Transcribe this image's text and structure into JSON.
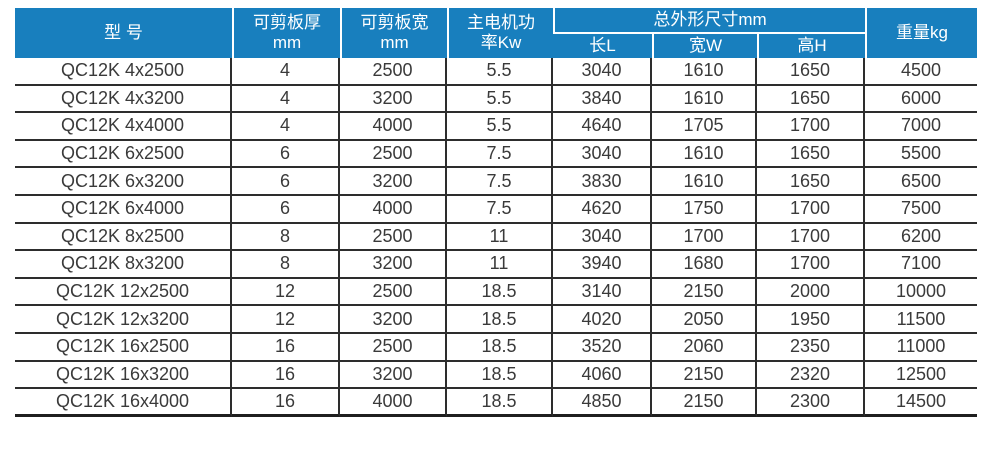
{
  "colors": {
    "header_bg": "#187fbe",
    "header_text": "#ffffff",
    "grid_line": "#2d2d2d",
    "body_text": "#3a3a3a"
  },
  "table": {
    "headers": {
      "model": "型 号",
      "thickness_line1": "可剪板厚",
      "thickness_line2": "mm",
      "width_line1": "可剪板宽",
      "width_line2": "mm",
      "power_line1": "主电机功",
      "power_line2": "率Kw",
      "dimensions_group": "总外形尺寸mm",
      "dim_length": "长L",
      "dim_width": "宽W",
      "dim_height": "高H",
      "weight": "重量kg"
    },
    "rows": [
      [
        "QC12K 4x2500",
        "4",
        "2500",
        "5.5",
        "3040",
        "1610",
        "1650",
        "4500"
      ],
      [
        "QC12K 4x3200",
        "4",
        "3200",
        "5.5",
        "3840",
        "1610",
        "1650",
        "6000"
      ],
      [
        "QC12K 4x4000",
        "4",
        "4000",
        "5.5",
        "4640",
        "1705",
        "1700",
        "7000"
      ],
      [
        "QC12K 6x2500",
        "6",
        "2500",
        "7.5",
        "3040",
        "1610",
        "1650",
        "5500"
      ],
      [
        "QC12K 6x3200",
        "6",
        "3200",
        "7.5",
        "3830",
        "1610",
        "1650",
        "6500"
      ],
      [
        "QC12K 6x4000",
        "6",
        "4000",
        "7.5",
        "4620",
        "1750",
        "1700",
        "7500"
      ],
      [
        "QC12K 8x2500",
        "8",
        "2500",
        "11",
        "3040",
        "1700",
        "1700",
        "6200"
      ],
      [
        "QC12K 8x3200",
        "8",
        "3200",
        "11",
        "3940",
        "1680",
        "1700",
        "7100"
      ],
      [
        "QC12K 12x2500",
        "12",
        "2500",
        "18.5",
        "3140",
        "2150",
        "2000",
        "10000"
      ],
      [
        "QC12K 12x3200",
        "12",
        "3200",
        "18.5",
        "4020",
        "2050",
        "1950",
        "11500"
      ],
      [
        "QC12K 16x2500",
        "16",
        "2500",
        "18.5",
        "3520",
        "2060",
        "2350",
        "11000"
      ],
      [
        "QC12K 16x3200",
        "16",
        "3200",
        "18.5",
        "4060",
        "2150",
        "2320",
        "12500"
      ],
      [
        "QC12K 16x4000",
        "16",
        "4000",
        "18.5",
        "4850",
        "2150",
        "2300",
        "14500"
      ]
    ]
  }
}
